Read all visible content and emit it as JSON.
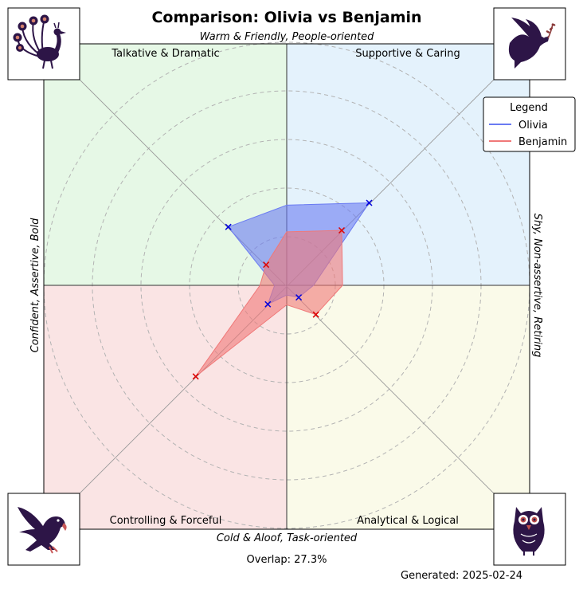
{
  "chart_data": {
    "type": "radar",
    "title": "Comparison: Olivia vs Benjamin",
    "axis_labels": {
      "top": "Warm & Friendly, People-oriented",
      "bottom": "Cold & Aloof, Task-oriented",
      "left": "Confident, Assertive, Bold",
      "right": "Shy, Non-assertive, Retiring"
    },
    "quadrants": [
      {
        "label": "Talkative & Dramatic",
        "position": "top-left",
        "color": "#e6f8e6",
        "icon": "peacock-icon"
      },
      {
        "label": "Supportive & Caring",
        "position": "top-right",
        "color": "#e4f2fc",
        "icon": "dove-icon"
      },
      {
        "label": "Controlling & Forceful",
        "position": "bottom-left",
        "color": "#fae4e4",
        "icon": "eagle-icon"
      },
      {
        "label": "Analytical & Logical",
        "position": "bottom-right",
        "color": "#fafae9",
        "icon": "owl-icon"
      }
    ],
    "directions": [
      "up",
      "up-right",
      "right",
      "down-right",
      "down",
      "down-left",
      "left",
      "up-left"
    ],
    "rlim": [
      0,
      100
    ],
    "grid": "dashed rings",
    "series": [
      {
        "name": "Olivia",
        "color": "#6a7bf2",
        "marker_color": "#0000dd",
        "values": [
          33,
          48,
          11,
          7,
          4,
          11,
          5,
          34
        ],
        "markers": [
          false,
          true,
          false,
          true,
          false,
          true,
          false,
          true
        ]
      },
      {
        "name": "Benjamin",
        "color": "#f07878",
        "marker_color": "#dd0000",
        "values": [
          22,
          32,
          23,
          17,
          8,
          53,
          11,
          12
        ],
        "markers": [
          false,
          true,
          false,
          true,
          false,
          true,
          false,
          true
        ]
      }
    ],
    "legend": {
      "title": "Legend",
      "placement": "top-right"
    }
  },
  "footer": {
    "overlap": "Overlap: 27.3%",
    "generated": "Generated: 2025-02-24"
  }
}
